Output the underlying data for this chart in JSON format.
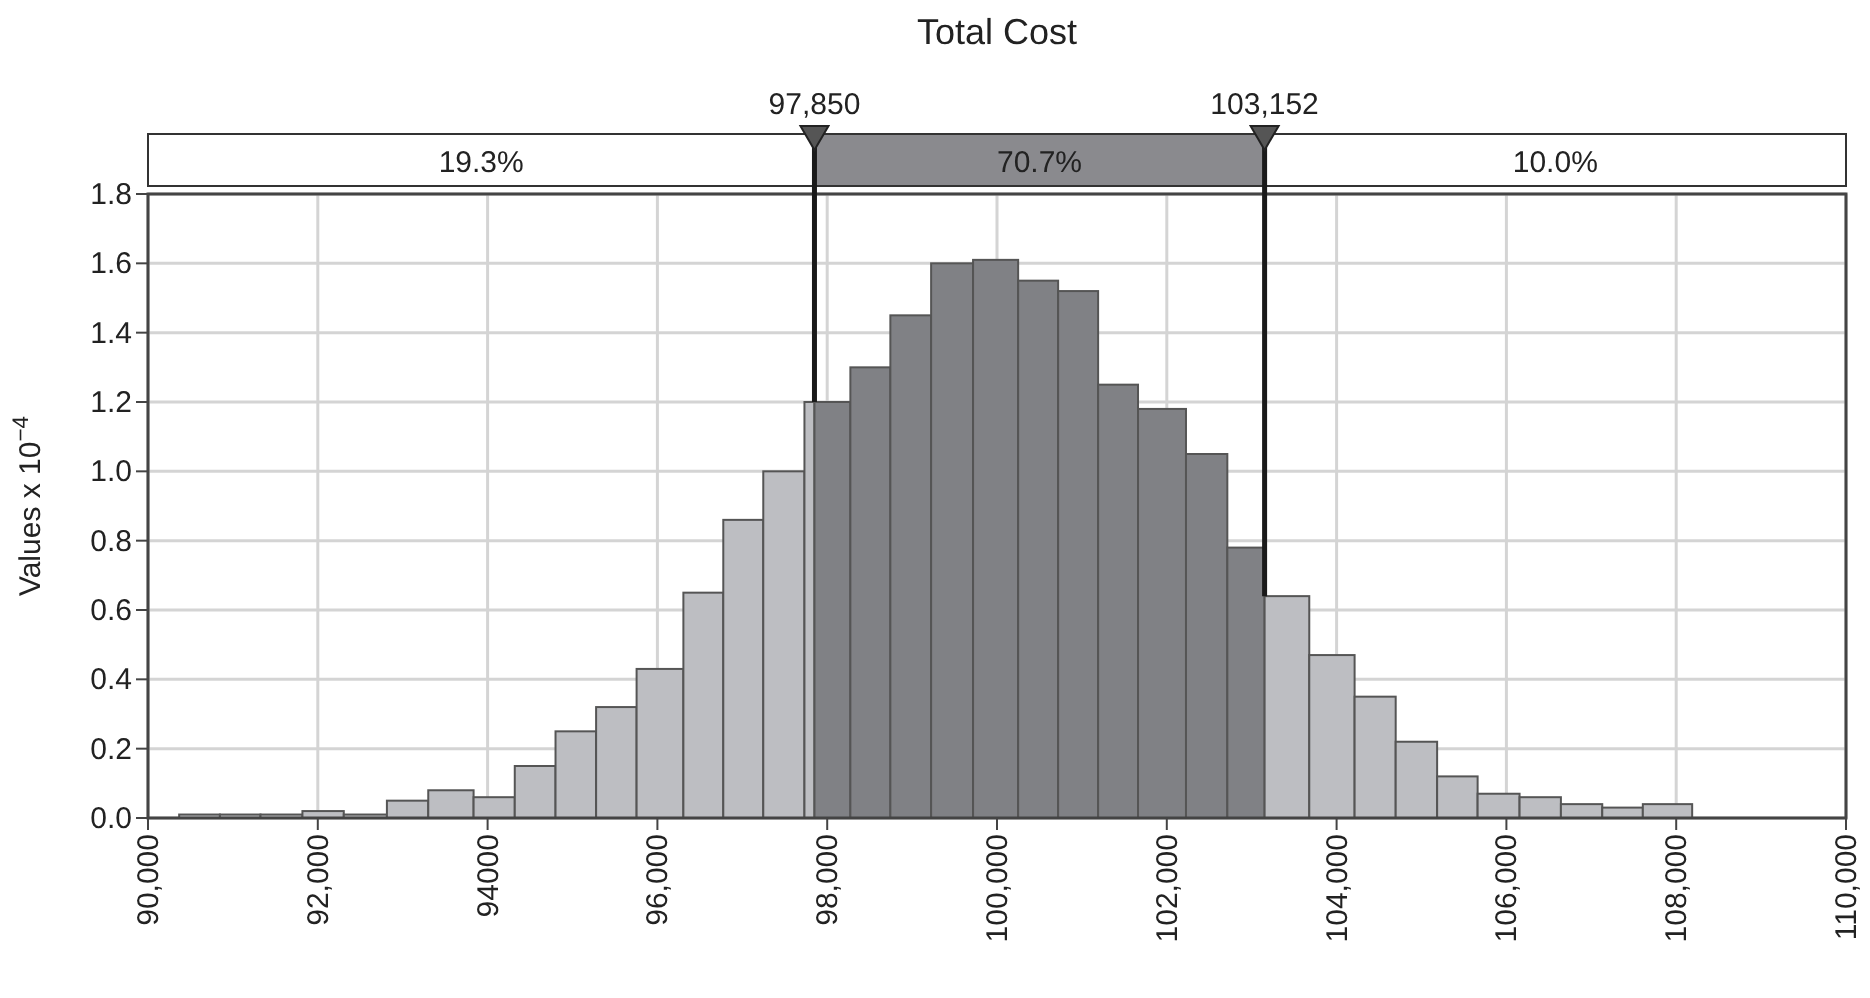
{
  "chart_data": {
    "type": "histogram",
    "title": "Total Cost",
    "ylabel": "Values x 10$^{−4}$",
    "bins": [
      90367,
      90847,
      91325,
      91819,
      92306,
      92814,
      93301,
      93835,
      94320,
      94800,
      95278,
      95755,
      96306,
      96776,
      97247,
      97732,
      97850,
      98273,
      98744,
      99224,
      99718,
      100249,
      100720,
      101191,
      101661,
      102226,
      102713,
      103152,
      103678,
      104212,
      104696,
      105184,
      105661,
      106155,
      106642,
      107129,
      107607,
      108188
    ],
    "values": [
      0.01,
      0.01,
      0.01,
      0.02,
      0.01,
      0.05,
      0.08,
      0.06,
      0.15,
      0.25,
      0.32,
      0.43,
      0.65,
      0.86,
      1.0,
      1.2,
      1.2,
      1.3,
      1.45,
      1.6,
      1.61,
      1.55,
      1.52,
      1.25,
      1.18,
      1.05,
      0.78,
      0.64,
      0.47,
      0.35,
      0.22,
      0.12,
      0.07,
      0.06,
      0.04,
      0.03,
      0.04
    ],
    "colors": [
      "#bdbec2",
      "#bdbec2",
      "#bdbec2",
      "#bdbec2",
      "#bdbec2",
      "#bdbec2",
      "#bdbec2",
      "#bdbec2",
      "#bdbec2",
      "#bdbec2",
      "#bdbec2",
      "#bdbec2",
      "#bdbec2",
      "#bdbec2",
      "#bdbec2",
      "#bdbec2",
      "#808185",
      "#808185",
      "#808185",
      "#808185",
      "#808185",
      "#808185",
      "#808185",
      "#808185",
      "#808185",
      "#808185",
      "#808185",
      "#bdbec2",
      "#bdbec2",
      "#bdbec2",
      "#bdbec2",
      "#bdbec2",
      "#bdbec2",
      "#bdbec2",
      "#bdbec2",
      "#bdbec2",
      "#bdbec2"
    ],
    "xlim": [
      90000,
      110000
    ],
    "xticks": [
      {
        "value": 90000,
        "label": "90,000"
      },
      {
        "value": 92000,
        "label": "92,000"
      },
      {
        "value": 94000,
        "label": "94000"
      },
      {
        "value": 96000,
        "label": "96,000"
      },
      {
        "value": 98000,
        "label": "98,000"
      },
      {
        "value": 100000,
        "label": "100,000"
      },
      {
        "value": 102000,
        "label": "102,000"
      },
      {
        "value": 104000,
        "label": "104,000"
      },
      {
        "value": 106000,
        "label": "106,000"
      },
      {
        "value": 108000,
        "label": "108,000"
      },
      {
        "value": 110000,
        "label": "110,000"
      }
    ],
    "ylim": [
      0,
      1.8
    ],
    "yticks": [
      {
        "value": 0,
        "label": "0.0"
      },
      {
        "value": 0.2,
        "label": "0.2"
      },
      {
        "value": 0.4,
        "label": "0.4"
      },
      {
        "value": 0.6,
        "label": "0.6"
      },
      {
        "value": 0.8,
        "label": "0.8"
      },
      {
        "value": 1,
        "label": "1.0"
      },
      {
        "value": 1.2,
        "label": "1.2"
      },
      {
        "value": 1.4,
        "label": "1.4"
      },
      {
        "value": 1.6,
        "label": "1.6"
      },
      {
        "value": 1.8,
        "label": "1.8"
      }
    ],
    "grid": true,
    "ref_lines": [
      {
        "axis": "x",
        "value": 97850,
        "label": "97,850",
        "color": "#1a1a1a"
      },
      {
        "axis": "x",
        "value": 103152,
        "label": "103,152",
        "color": "#1a1a1a"
      }
    ],
    "annotations": [
      "19.3%",
      "70.7%",
      "10.0%"
    ]
  }
}
